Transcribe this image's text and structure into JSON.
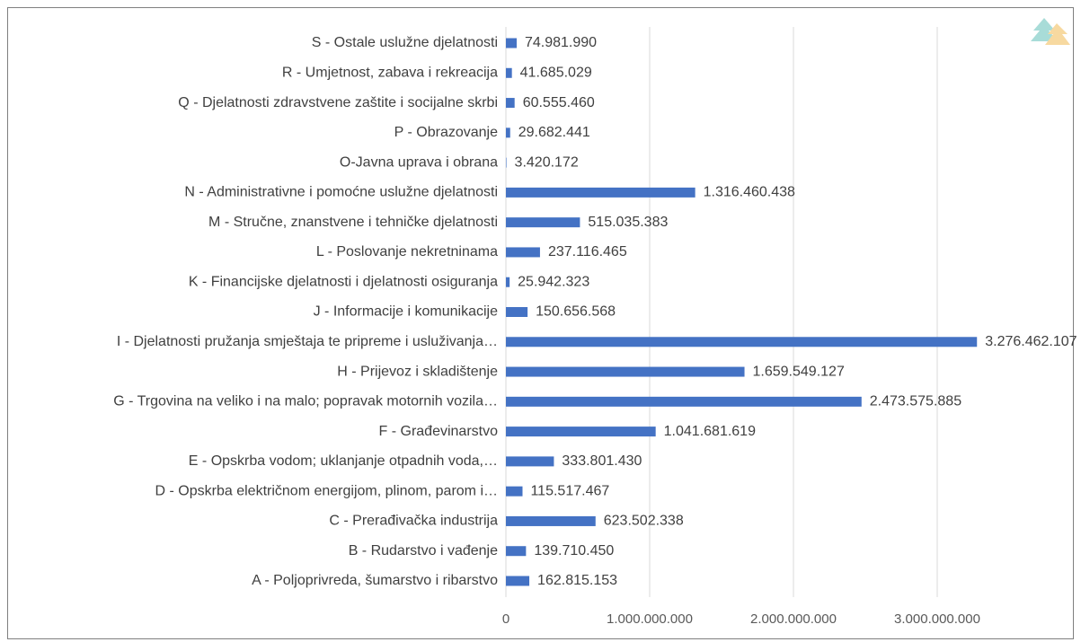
{
  "chart_data": {
    "type": "bar",
    "orientation": "horizontal",
    "categories": [
      "A - Poljoprivreda, šumarstvo i ribarstvo",
      "B - Rudarstvo i vađenje",
      "C - Prerađivačka industrija",
      "D - Opskrba električnom energijom, plinom, parom i…",
      "E - Opskrba vodom; uklanjanje otpadnih voda,…",
      "F - Građevinarstvo",
      "G - Trgovina na veliko i na malo; popravak motornih vozila…",
      "H - Prijevoz i skladištenje",
      "I - Djelatnosti pružanja smještaja te pripreme i usluživanja…",
      "J - Informacije i komunikacije",
      "K - Financijske djelatnosti i djelatnosti osiguranja",
      "L - Poslovanje nekretninama",
      "M - Stručne, znanstvene i tehničke djelatnosti",
      "N - Administrativne i pomoćne uslužne djelatnosti",
      "O-Javna uprava i obrana",
      "P - Obrazovanje",
      "Q - Djelatnosti zdravstvene zaštite i socijalne skrbi",
      "R - Umjetnost, zabava i rekreacija",
      "S - Ostale uslužne djelatnosti"
    ],
    "values": [
      162815153,
      139710450,
      623502338,
      115517467,
      333801430,
      1041681619,
      2473575885,
      1659549127,
      3276462107,
      150656568,
      25942323,
      237116465,
      515035383,
      1316460438,
      3420172,
      29682441,
      60555460,
      41685029,
      74981990
    ],
    "value_labels": [
      "162.815.153",
      "139.710.450",
      "623.502.338",
      "115.517.467",
      "333.801.430",
      "1.041.681.619",
      "2.473.575.885",
      "1.659.549.127",
      "3.276.462.107",
      "150.656.568",
      "25.942.323",
      "237.116.465",
      "515.035.383",
      "1.316.460.438",
      "3.420.172",
      "29.682.441",
      "60.555.460",
      "41.685.029",
      "74.981.990"
    ],
    "color": "#4472c4",
    "xlim": [
      0,
      3500000000
    ],
    "xticks": [
      0,
      {
        "value": 1000000000,
        "label": "1.000.000.000"
      },
      {
        "value": 2000000000,
        "label": "2.000.000.000"
      },
      {
        "value": 3000000000,
        "label": "3.000.000.000"
      }
    ],
    "grid": true
  }
}
